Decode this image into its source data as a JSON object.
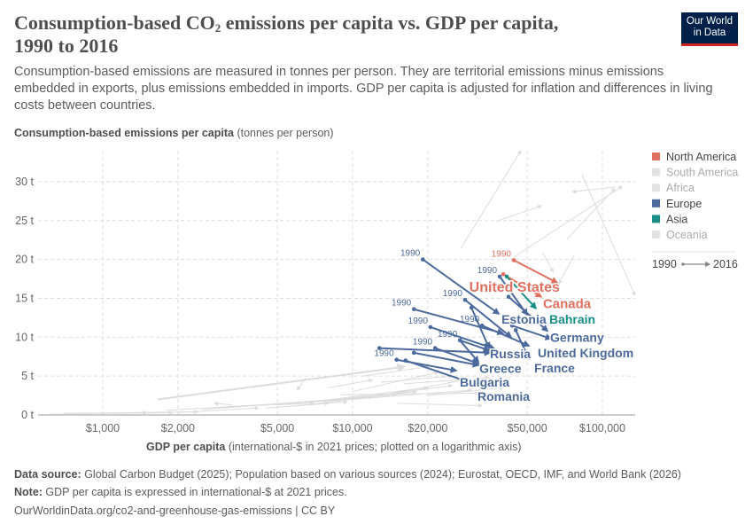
{
  "header": {
    "title_line1_pre": "Consumption-based CO",
    "title_sub": "2",
    "title_line1_post": " emissions per capita vs. GDP per capita,",
    "title_line2": "1990 to 2016",
    "subtitle": "Consumption-based emissions are measured in tonnes per person. They are territorial emissions minus emissions embedded in exports, plus emissions embedded in imports. GDP per capita is adjusted for inflation and differences in living costs between countries.",
    "logo_line1": "Our World",
    "logo_line2": "in Data"
  },
  "footer": {
    "source_label": "Data source:",
    "source": " Global Carbon Budget (2025); Population based on various sources (2024); Eurostat, OECD, IMF, and World Bank (2026)",
    "note_label": "Note:",
    "note": " GDP per capita is expressed in international-$ at 2021 prices.",
    "url": "OurWorldinData.org/co2-and-greenhouse-gas-emissions | CC BY"
  },
  "chart_data": {
    "type": "scatter",
    "subtype": "arrow-connected-scatter",
    "ylabel_bold": "Consumption-based emissions per capita",
    "ylabel_unit": " (tonnes per person)",
    "xlabel_bold": "GDP per capita",
    "xlabel_unit": " (international-$ in 2021 prices; plotted on a logarithmic axis)",
    "x_scale": "log",
    "xlim": [
      550,
      135000
    ],
    "ylim": [
      0,
      34
    ],
    "x_ticks": [
      {
        "v": 1000,
        "label": "$1,000"
      },
      {
        "v": 2000,
        "label": "$2,000"
      },
      {
        "v": 5000,
        "label": "$5,000"
      },
      {
        "v": 10000,
        "label": "$10,000"
      },
      {
        "v": 20000,
        "label": "$20,000"
      },
      {
        "v": 50000,
        "label": "$50,000"
      },
      {
        "v": 100000,
        "label": "$100,000"
      }
    ],
    "y_ticks": [
      {
        "v": 0,
        "label": "0 t"
      },
      {
        "v": 5,
        "label": "5 t"
      },
      {
        "v": 10,
        "label": "10 t"
      },
      {
        "v": 15,
        "label": "15 t"
      },
      {
        "v": 20,
        "label": "20 t"
      },
      {
        "v": 25,
        "label": "25 t"
      },
      {
        "v": 30,
        "label": "30 t"
      }
    ],
    "grid": true,
    "legend_position": "right",
    "legend": [
      {
        "name": "North America",
        "color": "#e07060",
        "active": true
      },
      {
        "name": "South America",
        "color": "#e3e3e3",
        "active": false
      },
      {
        "name": "Africa",
        "color": "#e3e3e3",
        "active": false
      },
      {
        "name": "Europe",
        "color": "#4c6a9c",
        "active": true
      },
      {
        "name": "Asia",
        "color": "#1a8f87",
        "active": true
      },
      {
        "name": "Oceania",
        "color": "#e3e3e3",
        "active": false
      }
    ],
    "arrow_legend": {
      "start": "1990",
      "end": "2016"
    },
    "series": [
      {
        "name": "United States",
        "region": "North America",
        "from": [
          44200,
          19.9
        ],
        "to": [
          65900,
          17.0
        ],
        "start_label": "1990"
      },
      {
        "name": "Canada",
        "region": "North America",
        "from": [
          40100,
          18.1
        ],
        "to": [
          56900,
          15.2
        ]
      },
      {
        "name": "Bahrain",
        "region": "Asia",
        "from": [
          41400,
          17.8
        ],
        "to": [
          54200,
          13.7
        ]
      },
      {
        "name": "Estonia",
        "region": "Europe",
        "from": [
          19100,
          20.0
        ],
        "to": [
          38500,
          13.0
        ],
        "start_label": "1990"
      },
      {
        "region": "Europe",
        "from": [
          38800,
          17.8
        ],
        "to": [
          50000,
          12.9
        ],
        "start_label": "1990"
      },
      {
        "name": "Germany",
        "region": "Europe",
        "from": [
          42100,
          15.2
        ],
        "to": [
          60300,
          10.8
        ]
      },
      {
        "region": "Europe",
        "from": [
          28200,
          14.8
        ],
        "to": [
          43100,
          10.0
        ],
        "start_label": "1990"
      },
      {
        "region": "Europe",
        "from": [
          29900,
          13.8
        ],
        "to": [
          35200,
          8.6
        ]
      },
      {
        "region": "Europe",
        "from": [
          17600,
          13.6
        ],
        "to": [
          40000,
          10.5
        ],
        "start_label": "1990"
      },
      {
        "region": "Europe",
        "from": [
          20500,
          11.3
        ],
        "to": [
          37000,
          8.5
        ],
        "start_label": "1990"
      },
      {
        "name": "United Kingdom",
        "region": "Europe",
        "from": [
          33000,
          11.5
        ],
        "to": [
          50800,
          8.9
        ],
        "start_label": "1990"
      },
      {
        "region": "Europe",
        "from": [
          43500,
          11.5
        ],
        "to": [
          62300,
          9.8
        ]
      },
      {
        "name": "France",
        "region": "Europe",
        "from": [
          45000,
          10.9
        ],
        "to": [
          50800,
          7.2
        ]
      },
      {
        "name": "Greece",
        "region": "Europe",
        "from": [
          26900,
          9.6
        ],
        "to": [
          31900,
          6.8
        ],
        "start_label": "1990"
      },
      {
        "name": "Russia",
        "region": "Europe",
        "from": [
          26900,
          9.6
        ],
        "to": [
          35200,
          8.3
        ]
      },
      {
        "region": "Europe",
        "from": [
          21400,
          8.6
        ],
        "to": [
          31900,
          6.6
        ],
        "start_label": "1990"
      },
      {
        "region": "Europe",
        "from": [
          12800,
          8.6
        ],
        "to": [
          35500,
          8.0
        ]
      },
      {
        "region": "Europe",
        "from": [
          17600,
          8.0
        ],
        "to": [
          31900,
          6.4
        ]
      },
      {
        "name": "Bulgaria",
        "region": "Europe",
        "from": [
          15000,
          7.1
        ],
        "to": [
          26000,
          5.7
        ],
        "start_label": "1990"
      },
      {
        "name": "Romania",
        "region": "Europe",
        "from": [
          16300,
          7.0
        ],
        "to": [
          30600,
          4.0
        ]
      }
    ],
    "other_countries": [
      {
        "from": [
          27100,
          21.4
        ],
        "to": [
          47200,
          34.0
        ]
      },
      {
        "from": [
          82900,
          30.9
        ],
        "to": [
          135000,
          15.4
        ]
      },
      {
        "from": [
          112000,
          29.3
        ],
        "to": [
          76000,
          28.7
        ]
      },
      {
        "from": [
          44200,
          20.3
        ],
        "to": [
          120000,
          29.4
        ]
      },
      {
        "from": [
          72000,
          22.6
        ],
        "to": [
          112000,
          29.1
        ]
      },
      {
        "from": [
          37500,
          24.9
        ],
        "to": [
          57000,
          26.9
        ]
      },
      {
        "from": [
          57600,
          20.9
        ],
        "to": [
          63500,
          18.4
        ]
      },
      {
        "from": [
          77000,
          20.5
        ],
        "to": [
          67000,
          16.9
        ]
      },
      {
        "from": [
          1660,
          2.0
        ],
        "to": [
          16100,
          6.2
        ]
      },
      {
        "from": [
          600,
          0.1
        ],
        "to": [
          1500,
          0.3
        ]
      },
      {
        "from": [
          700,
          0.2
        ],
        "to": [
          2400,
          0.4
        ]
      },
      {
        "from": [
          1100,
          0.2
        ],
        "to": [
          1900,
          0.3
        ]
      },
      {
        "from": [
          2000,
          0.3
        ],
        "to": [
          4200,
          0.9
        ]
      },
      {
        "from": [
          1800,
          0.6
        ],
        "to": [
          9000,
          1.9
        ]
      },
      {
        "from": [
          2500,
          0.7
        ],
        "to": [
          12000,
          2.3
        ]
      },
      {
        "from": [
          3200,
          1.1
        ],
        "to": [
          7000,
          1.5
        ]
      },
      {
        "from": [
          4000,
          1.2
        ],
        "to": [
          15000,
          2.6
        ]
      },
      {
        "from": [
          5000,
          1.3
        ],
        "to": [
          18000,
          3.0
        ]
      },
      {
        "from": [
          6500,
          1.6
        ],
        "to": [
          20000,
          3.5
        ]
      },
      {
        "from": [
          7000,
          1.4
        ],
        "to": [
          25000,
          3.8
        ]
      },
      {
        "from": [
          3300,
          1.3
        ],
        "to": [
          2800,
          1.5
        ]
      },
      {
        "from": [
          9000,
          1.9
        ],
        "to": [
          30000,
          3.2
        ]
      },
      {
        "from": [
          12000,
          2.3
        ],
        "to": [
          28000,
          4.5
        ]
      },
      {
        "from": [
          10000,
          3.0
        ],
        "to": [
          22000,
          5.5
        ]
      },
      {
        "from": [
          8000,
          3.5
        ],
        "to": [
          12000,
          4.5
        ]
      },
      {
        "from": [
          11000,
          5.0
        ],
        "to": [
          20000,
          6.2
        ]
      },
      {
        "from": [
          6500,
          4.8
        ],
        "to": [
          6000,
          3.2
        ]
      },
      {
        "from": [
          13000,
          4.2
        ],
        "to": [
          25000,
          5.0
        ]
      },
      {
        "from": [
          9000,
          2.6
        ],
        "to": [
          32000,
          2.8
        ]
      },
      {
        "from": [
          15000,
          1.5
        ],
        "to": [
          33000,
          1.2
        ]
      },
      {
        "from": [
          5500,
          1.1
        ],
        "to": [
          9500,
          1.7
        ]
      },
      {
        "from": [
          4500,
          0.9
        ],
        "to": [
          8000,
          1.5
        ]
      },
      {
        "from": [
          20000,
          2.5
        ],
        "to": [
          40000,
          3.5
        ]
      },
      {
        "from": [
          16000,
          4.0
        ],
        "to": [
          35000,
          4.8
        ]
      }
    ]
  }
}
